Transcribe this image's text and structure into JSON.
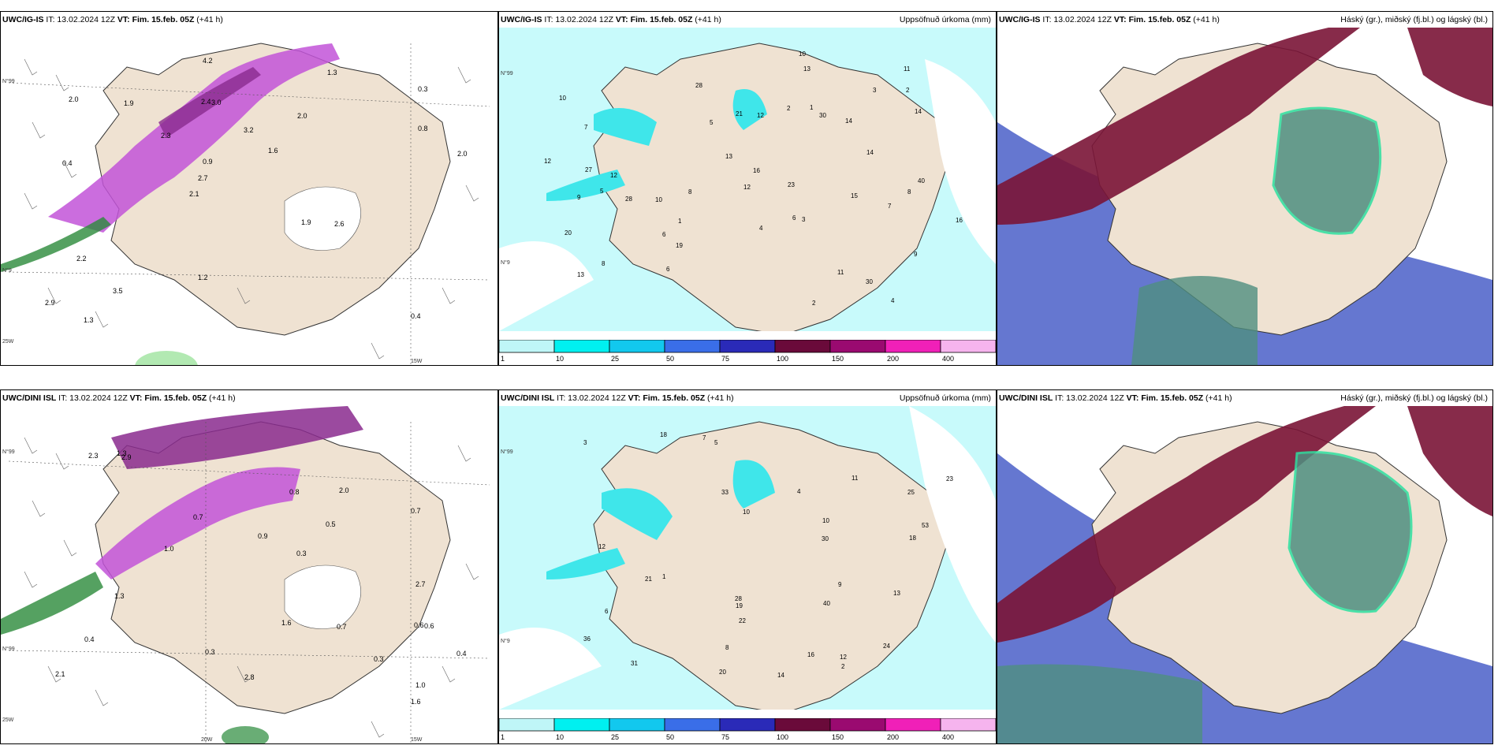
{
  "colors": {
    "land": "#efe2d2",
    "sea": "#ffffff",
    "precip_light": "#c8fafb",
    "precip_med": "#3fe6ea",
    "magenta": "#c254d8",
    "magenta_dark": "#8a2a8e",
    "green_light": "#9fe39f",
    "green_dark": "#1e7a2e",
    "maroon": "#7a1436",
    "blue": "#4a5fc8",
    "teal": "#4f8f80"
  },
  "top": {
    "left": {
      "model": "UWC/IG-IS",
      "it_prefix": "IT: 13.02.2024 12Z",
      "vt_label": "VT:",
      "vt_value": "Fim. 15.feb. 05Z",
      "lead": "(+41 h)",
      "grid_labels": [
        "N°99",
        "N°9",
        "25W",
        "15W"
      ],
      "values": [
        "0.4",
        "0.4",
        "0.3",
        "2.1",
        "2.0",
        "1.3",
        "2.4",
        "3.2",
        "2.2",
        "2.3",
        "2.9",
        "3.5",
        "3.0",
        "1.6",
        "2.6",
        "2.0",
        "4.2",
        "2.0",
        "1.9",
        "0.8",
        "2.7",
        "1.2",
        "0.9",
        "1.9",
        "1.3"
      ]
    },
    "middle": {
      "model": "UWC/IG-IS",
      "it_prefix": "IT: 13.02.2024 12Z",
      "vt_label": "VT:",
      "vt_value": "Fim. 15.feb. 05Z",
      "lead": "(+41 h)",
      "field_name": "Uppsöfnuð úrkoma (mm)",
      "grid_labels": [
        "N°99",
        "N°9"
      ],
      "values": [
        "4",
        "5",
        "6",
        "10",
        "9",
        "7",
        "8",
        "10",
        "14",
        "21",
        "30",
        "30",
        "19",
        "28",
        "23",
        "20",
        "15",
        "16",
        "12",
        "13",
        "11",
        "12",
        "14",
        "16",
        "40",
        "27",
        "28",
        "12",
        "13",
        "2",
        "3",
        "9",
        "6",
        "1",
        "5",
        "7",
        "8",
        "11",
        "3",
        "2",
        "1",
        "4",
        "6",
        "10",
        "8",
        "12",
        "14",
        "13",
        "2"
      ]
    },
    "right": {
      "model": "UWC/IG-IS",
      "it_prefix": "IT: 13.02.2024 12Z",
      "vt_label": "VT:",
      "vt_value": "Fim. 15.feb. 05Z",
      "lead": "(+41 h)",
      "field_name": "Háský (gr.), miðský (fj.bl.) og lágský (bl.)"
    }
  },
  "bottom": {
    "left": {
      "model": "UWC/DINI ISL",
      "it_prefix": "IT: 13.02.2024 12Z",
      "vt_label": "VT:",
      "vt_value": "Fim. 15.feb. 05Z",
      "lead": "(+41 h)",
      "grid_labels": [
        "N°99",
        "N°99",
        "25W",
        "20W",
        "15W"
      ],
      "values": [
        "0.4",
        "0.3",
        "0.6",
        "0.4",
        "0.8",
        "0.3",
        "0.9",
        "0.5",
        "0.6",
        "2.1",
        "2.9",
        "1.6",
        "2.7",
        "2.8",
        "2.3",
        "0.3",
        "1.6",
        "0.7",
        "1.0",
        "0.7",
        "1.3",
        "2.0",
        "1.0",
        "0.7",
        "1.3"
      ]
    },
    "middle": {
      "model": "UWC/DINI ISL",
      "it_prefix": "IT: 13.02.2024 12Z",
      "vt_label": "VT:",
      "vt_value": "Fim. 15.feb. 05Z",
      "lead": "(+41 h)",
      "field_name": "Uppsöfnuð úrkoma (mm)",
      "grid_labels": [
        "N°99",
        "N°9"
      ],
      "values": [
        "12",
        "18",
        "10",
        "11",
        "22",
        "23",
        "33",
        "25",
        "20",
        "14",
        "24",
        "31",
        "28",
        "16",
        "30",
        "19",
        "40",
        "36",
        "53",
        "21",
        "18",
        "3",
        "2",
        "1",
        "5",
        "7",
        "9",
        "6",
        "4",
        "8",
        "10",
        "12",
        "13"
      ]
    },
    "right": {
      "model": "UWC/DINI ISL",
      "it_prefix": "IT: 13.02.2024 12Z",
      "vt_label": "VT:",
      "vt_value": "Fim. 15.feb. 05Z",
      "lead": "(+41 h)",
      "field_name": "Háský (gr.), miðský (fj.bl.) og lágský (bl.)"
    }
  },
  "colorbar": {
    "labels": [
      "1",
      "10",
      "25",
      "50",
      "75",
      "100",
      "150",
      "200",
      "400"
    ],
    "colors": [
      "#bff6f7",
      "#00f0f0",
      "#12c8ee",
      "#3a6ee8",
      "#2a2ab8",
      "#6a0a3a",
      "#9a0a70",
      "#f020b8",
      "#f6b4ee"
    ]
  }
}
